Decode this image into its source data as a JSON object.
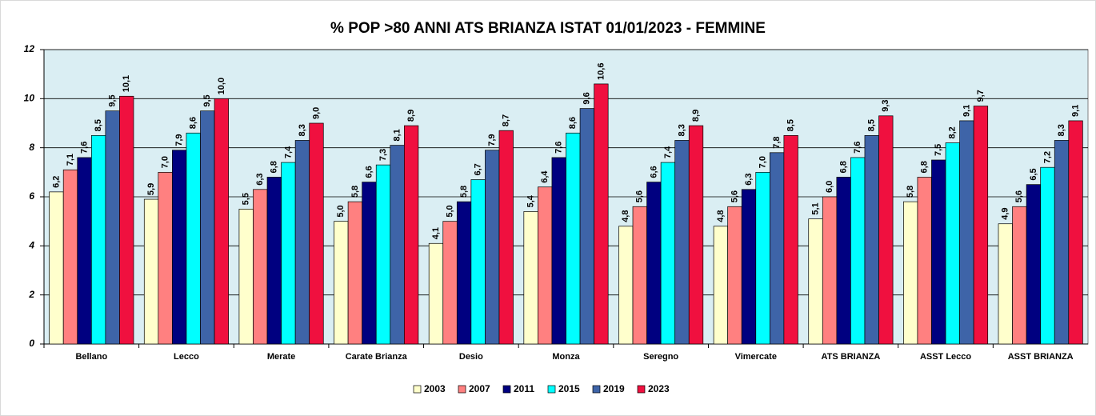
{
  "chart_data": {
    "type": "bar",
    "title": "% POP >80 ANNI ATS BRIANZA ISTAT 01/01/2023 -  FEMMINE",
    "categories": [
      "Bellano",
      "Lecco",
      "Merate",
      "Carate Brianza",
      "Desio",
      "Monza",
      "Seregno",
      "Vimercate",
      "ATS BRIANZA",
      "ASST Lecco",
      "ASST BRIANZA"
    ],
    "series": [
      {
        "name": "2003",
        "color": "#ffffcc",
        "label_color": "#000000",
        "values": [
          6.2,
          5.9,
          5.5,
          5.0,
          4.1,
          5.4,
          4.8,
          4.8,
          5.1,
          5.8,
          4.9
        ],
        "value_labels": [
          "6,2",
          "5,9",
          "5,5",
          "5,0",
          "4,1",
          "5,4",
          "4,8",
          "4,8",
          "5,1",
          "5,8",
          "4,9"
        ]
      },
      {
        "name": "2007",
        "color": "#ff8080",
        "label_color": "#000000",
        "values": [
          7.1,
          7.0,
          6.3,
          5.8,
          5.0,
          6.4,
          5.6,
          5.6,
          6.0,
          6.8,
          5.6
        ],
        "value_labels": [
          "7,1",
          "7,0",
          "6,3",
          "5,8",
          "5,0",
          "6,4",
          "5,6",
          "5,6",
          "6,0",
          "6,8",
          "5,6"
        ]
      },
      {
        "name": "2011",
        "color": "#000080",
        "label_color": "#000000",
        "values": [
          7.6,
          7.9,
          6.8,
          6.6,
          5.8,
          7.6,
          6.6,
          6.3,
          6.8,
          7.5,
          6.5
        ],
        "value_labels": [
          "7,6",
          "7,9",
          "6,8",
          "6,6",
          "5,8",
          "7,6",
          "6,6",
          "6,3",
          "6,8",
          "7,5",
          "6,5"
        ]
      },
      {
        "name": "2015",
        "color": "#00ffff",
        "label_color": "#000000",
        "values": [
          8.5,
          8.6,
          7.4,
          7.3,
          6.7,
          8.6,
          7.4,
          7.0,
          7.6,
          8.2,
          7.2
        ],
        "value_labels": [
          "8,5",
          "8,6",
          "7,4",
          "7,3",
          "6,7",
          "8,6",
          "7,4",
          "7,0",
          "7,6",
          "8,2",
          "7,2"
        ]
      },
      {
        "name": "2019",
        "color": "#3e64a8",
        "label_color": "#000000",
        "values": [
          9.5,
          9.5,
          8.3,
          8.1,
          7.9,
          9.6,
          8.3,
          7.8,
          8.5,
          9.1,
          8.3
        ],
        "value_labels": [
          "9,5",
          "9,5",
          "8,3",
          "8,1",
          "7,9",
          "9,6",
          "8,3",
          "7,8",
          "8,5",
          "9,1",
          "8,3"
        ]
      },
      {
        "name": "2023",
        "color": "#f0103f",
        "label_color": "#d00000",
        "values": [
          10.1,
          10.0,
          9.0,
          8.9,
          8.7,
          10.6,
          8.9,
          8.5,
          9.3,
          9.7,
          9.1
        ],
        "value_labels": [
          "10,1",
          "10,0",
          "9,0",
          "8,9",
          "8,7",
          "10,6",
          "8,9",
          "8,5",
          "9,3",
          "9,7",
          "9,1"
        ]
      }
    ],
    "ylim": [
      0,
      12
    ],
    "yticks": [
      0,
      2,
      4,
      6,
      8,
      10,
      12
    ],
    "grid": true
  }
}
